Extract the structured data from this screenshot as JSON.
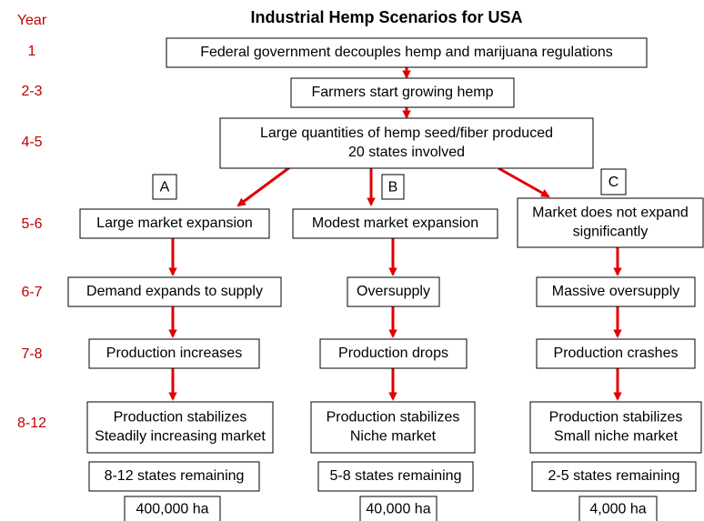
{
  "title": "Industrial Hemp Scenarios for USA",
  "year_header": "Year",
  "years": [
    "1",
    "2-3",
    "4-5",
    "5-6",
    "6-7",
    "7-8",
    "8-12"
  ],
  "nodes": [
    {
      "lines": [
        "Federal government decouples hemp and marijuana regulations"
      ]
    },
    {
      "lines": [
        "Farmers start growing hemp"
      ]
    },
    {
      "lines": [
        "Large quantities of hemp seed/fiber produced",
        "20 states involved"
      ]
    }
  ],
  "scenarios": [
    {
      "label": "A",
      "steps": [
        {
          "lines": [
            "Large market expansion"
          ]
        },
        {
          "lines": [
            "Demand expands to supply"
          ]
        },
        {
          "lines": [
            "Production increases"
          ]
        },
        {
          "lines": [
            "Production stabilizes",
            "Steadily increasing market"
          ]
        },
        {
          "lines": [
            "8-12 states remaining"
          ]
        },
        {
          "lines": [
            "400,000 ha"
          ]
        }
      ]
    },
    {
      "label": "B",
      "steps": [
        {
          "lines": [
            "Modest market expansion"
          ]
        },
        {
          "lines": [
            "Oversupply"
          ]
        },
        {
          "lines": [
            "Production drops"
          ]
        },
        {
          "lines": [
            "Production stabilizes",
            "Niche market"
          ]
        },
        {
          "lines": [
            "5-8 states remaining"
          ]
        },
        {
          "lines": [
            "40,000 ha"
          ]
        }
      ]
    },
    {
      "label": "C",
      "steps": [
        {
          "lines": [
            "Market does not expand",
            "significantly"
          ]
        },
        {
          "lines": [
            "Massive oversupply"
          ]
        },
        {
          "lines": [
            "Production crashes"
          ]
        },
        {
          "lines": [
            "Production stabilizes",
            "Small niche market"
          ]
        },
        {
          "lines": [
            "2-5 states remaining"
          ]
        },
        {
          "lines": [
            "4,000 ha"
          ]
        }
      ]
    }
  ]
}
